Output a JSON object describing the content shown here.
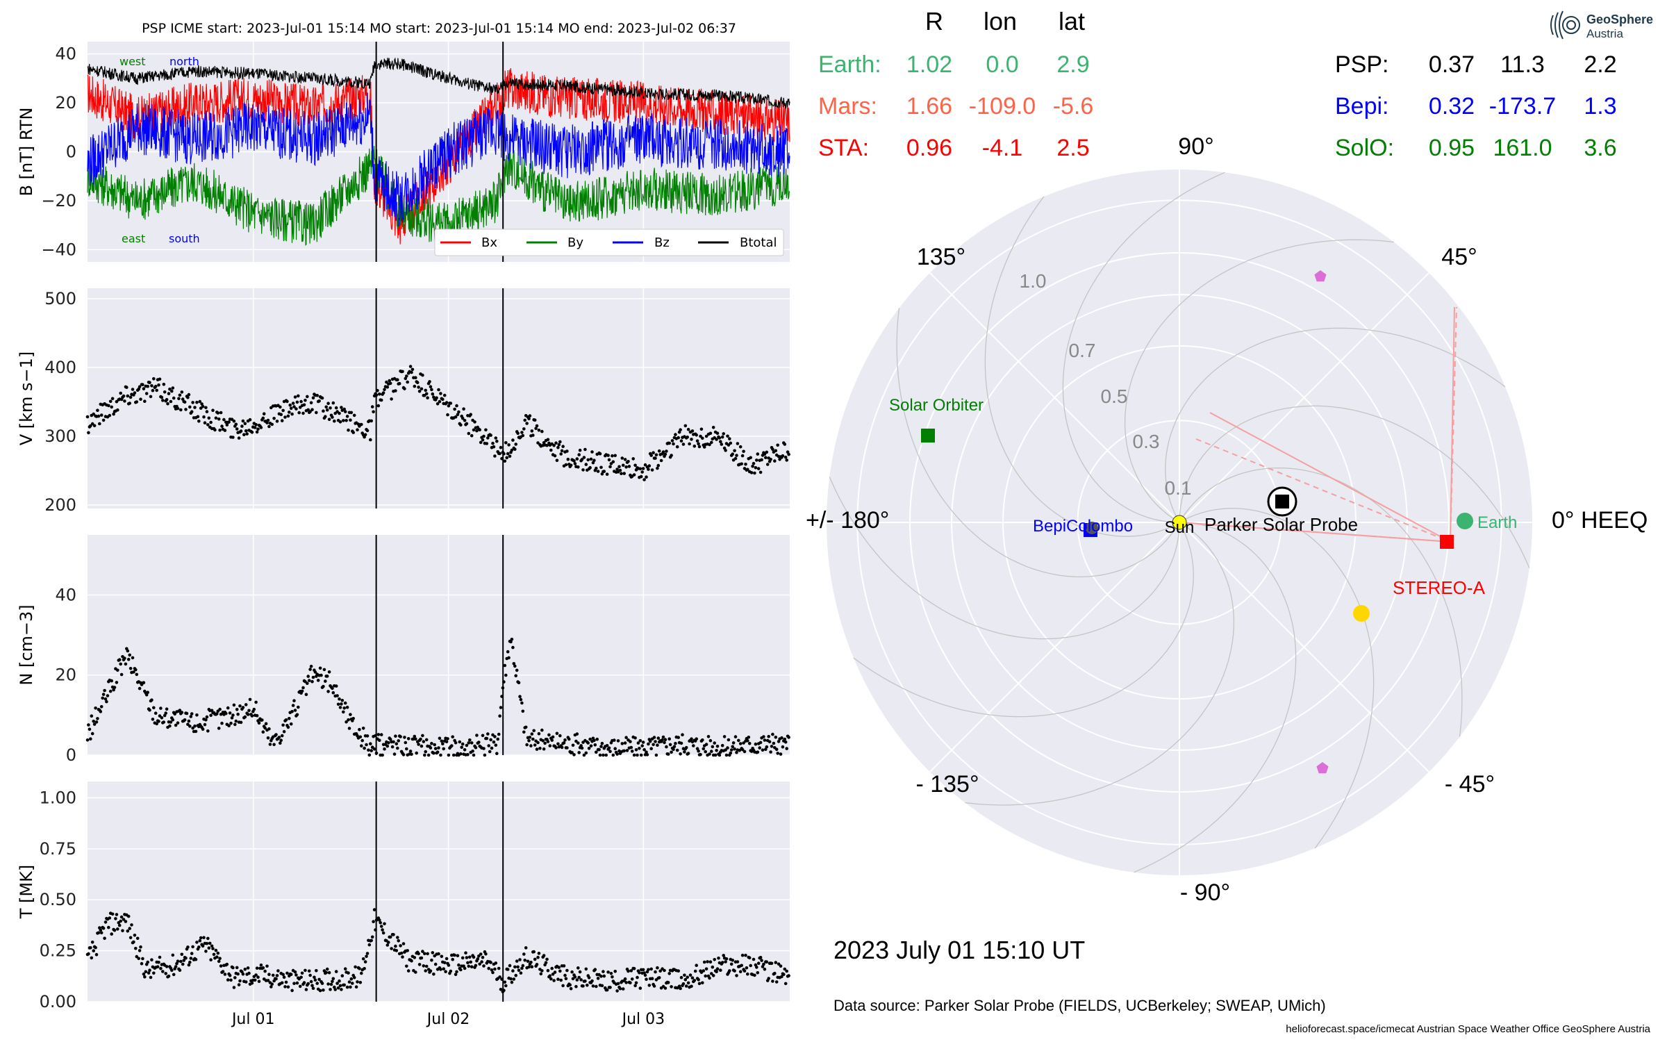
{
  "colors": {
    "bx": "#ff0000",
    "by": "#008000",
    "bz": "#0000ff",
    "btotal": "#000000",
    "earth": "#3cb371",
    "mars": "#ff6347",
    "sta": "#ff0000",
    "psp": "#000000",
    "bepi": "#0000ff",
    "solo": "#008000",
    "panel_bg": "#eaeaf2",
    "grid": "#ffffff"
  },
  "header": {
    "title": "PSP    ICME start: 2023-Jul-01 15:14   MO start: 2023-Jul-01 15:14   MO end: 2023-Jul-02 06:37"
  },
  "positions": {
    "col_r": "R",
    "col_lon": "lon",
    "col_lat": "lat",
    "left": [
      {
        "name": "Earth:",
        "r": "1.02",
        "lon": "0.0",
        "lat": "2.9",
        "color": "#3cb371"
      },
      {
        "name": "Mars:",
        "r": "1.66",
        "lon": "-109.0",
        "lat": "-5.6",
        "color": "#ff6347"
      },
      {
        "name": "STA:",
        "r": "0.96",
        "lon": "-4.1",
        "lat": "2.5",
        "color": "#ff0000"
      }
    ],
    "right": [
      {
        "name": "PSP:",
        "r": "0.37",
        "lon": "11.3",
        "lat": "2.2",
        "color": "#000000"
      },
      {
        "name": "Bepi:",
        "r": "0.32",
        "lon": "-173.7",
        "lat": "1.3",
        "color": "#0000ff"
      },
      {
        "name": "SolO:",
        "r": "0.95",
        "lon": "161.0",
        "lat": "3.6",
        "color": "#008000"
      }
    ]
  },
  "logo": {
    "line1": "GeoSphere",
    "line2": "Austria"
  },
  "polar": {
    "angle_labels": {
      "a90": "90°",
      "a45": "45°",
      "a135": "135°",
      "a0": "0° HEEQ",
      "a180": "+/- 180°",
      "am45": "- 45°",
      "am135": "- 135°",
      "am90": "- 90°"
    },
    "r_labels": [
      "0.1",
      "0.3",
      "0.5",
      "0.7",
      "1.0"
    ],
    "objects": {
      "sun": "Sun",
      "psp": "Parker Solar Probe",
      "bepi": "BepiColombo",
      "solo": "Solar Orbiter",
      "earth": "Earth",
      "sta": "STEREO-A"
    }
  },
  "footer": {
    "date": "2023 July 01  15:10 UT",
    "source": "Data source: Parker Solar Probe (FIELDS, UCBerkeley; SWEAP, UMich)",
    "credits": "helioforecast.space/icmecat   Austrian Space Weather Office   GeoSphere Austria"
  },
  "chart_data": [
    {
      "type": "line",
      "ylabel": "B [nT] RTN",
      "ylim": [
        -45,
        45
      ],
      "yticks": [
        "40",
        "20",
        "0",
        "−20",
        "−40"
      ],
      "xlim_days": [
        0.15,
        3.75
      ],
      "annotations": {
        "top_left": "west",
        "top_right": "north",
        "bottom_left": "east",
        "bottom_right": "south"
      },
      "legend": [
        "Bx",
        "By",
        "Bz",
        "Btotal"
      ],
      "legend_position": "bottom-right",
      "events": [
        "2023-07-01 15:14",
        "2023-07-02 06:37"
      ],
      "series": [
        {
          "name": "Bx",
          "x": [
            0.15,
            0.4,
            0.7,
            1.0,
            1.3,
            1.6,
            1.62,
            1.75,
            2.0,
            2.25,
            2.3,
            2.6,
            3.0,
            3.4,
            3.75
          ],
          "y": [
            24,
            14,
            20,
            22,
            18,
            24,
            -12,
            -30,
            -5,
            20,
            26,
            22,
            20,
            16,
            12
          ]
        },
        {
          "name": "By",
          "x": [
            0.15,
            0.4,
            0.7,
            1.0,
            1.3,
            1.6,
            1.62,
            1.75,
            2.0,
            2.25,
            2.3,
            2.6,
            3.0,
            3.4,
            3.75
          ],
          "y": [
            -10,
            -20,
            -12,
            -25,
            -30,
            -6,
            -5,
            -25,
            -30,
            -20,
            -5,
            -22,
            -15,
            -18,
            -12
          ]
        },
        {
          "name": "Bz",
          "x": [
            0.15,
            0.4,
            0.7,
            1.0,
            1.3,
            1.6,
            1.62,
            1.75,
            2.0,
            2.25,
            2.3,
            2.6,
            3.0,
            3.4,
            3.75
          ],
          "y": [
            -5,
            10,
            5,
            10,
            5,
            15,
            -10,
            -20,
            0,
            10,
            5,
            0,
            5,
            3,
            0
          ]
        },
        {
          "name": "Btotal",
          "x": [
            0.15,
            0.4,
            0.7,
            1.0,
            1.3,
            1.6,
            1.62,
            1.75,
            2.0,
            2.25,
            2.3,
            2.6,
            3.0,
            3.4,
            3.75
          ],
          "y": [
            34,
            30,
            33,
            32,
            30,
            28,
            36,
            36,
            30,
            25,
            28,
            27,
            24,
            23,
            20
          ]
        }
      ]
    },
    {
      "type": "scatter",
      "ylabel": "V [km s−1]",
      "ylim": [
        195,
        515
      ],
      "yticks": [
        "500",
        "400",
        "300",
        "200"
      ],
      "series": [
        {
          "name": "V",
          "x": [
            0.15,
            0.35,
            0.5,
            0.7,
            0.9,
            1.1,
            1.3,
            1.5,
            1.6,
            1.62,
            1.8,
            2.0,
            2.2,
            2.28,
            2.4,
            2.6,
            2.8,
            3.0,
            3.2,
            3.4,
            3.55,
            3.75
          ],
          "y": [
            320,
            360,
            370,
            340,
            310,
            330,
            350,
            320,
            310,
            350,
            390,
            340,
            300,
            270,
            320,
            270,
            260,
            250,
            300,
            300,
            255,
            280
          ]
        }
      ]
    },
    {
      "type": "scatter",
      "ylabel": "N [cm−3]",
      "ylim": [
        0,
        55
      ],
      "yticks": [
        "40",
        "20",
        "0"
      ],
      "series": [
        {
          "name": "N",
          "x": [
            0.15,
            0.25,
            0.35,
            0.5,
            0.7,
            0.9,
            1.0,
            1.1,
            1.2,
            1.3,
            1.4,
            1.5,
            1.6,
            1.7,
            1.9,
            2.1,
            2.25,
            2.28,
            2.32,
            2.4,
            2.6,
            2.8,
            3.0,
            3.2,
            3.4,
            3.6,
            3.75
          ],
          "y": [
            5,
            15,
            25,
            10,
            8,
            10,
            12,
            3,
            10,
            20,
            18,
            8,
            2,
            3,
            2,
            2,
            3,
            18,
            30,
            4,
            3,
            2,
            2,
            3,
            2,
            3,
            2
          ]
        }
      ]
    },
    {
      "type": "scatter",
      "ylabel": "T [MK]",
      "ylim": [
        0,
        1.08
      ],
      "yticks": [
        "1.00",
        "0.75",
        "0.50",
        "0.25",
        "0.00"
      ],
      "xticks": [
        "Jul 01",
        "Jul 02",
        "Jul 03"
      ],
      "series": [
        {
          "name": "T",
          "x": [
            0.15,
            0.25,
            0.35,
            0.45,
            0.6,
            0.75,
            0.9,
            1.05,
            1.2,
            1.4,
            1.55,
            1.62,
            1.8,
            2.0,
            2.2,
            2.28,
            2.4,
            2.6,
            2.8,
            3.0,
            3.2,
            3.4,
            3.55,
            3.75
          ],
          "y": [
            0.2,
            0.38,
            0.4,
            0.15,
            0.18,
            0.28,
            0.12,
            0.13,
            0.1,
            0.11,
            0.12,
            0.4,
            0.2,
            0.18,
            0.2,
            0.1,
            0.22,
            0.12,
            0.1,
            0.12,
            0.1,
            0.18,
            0.18,
            0.12
          ]
        }
      ]
    }
  ]
}
